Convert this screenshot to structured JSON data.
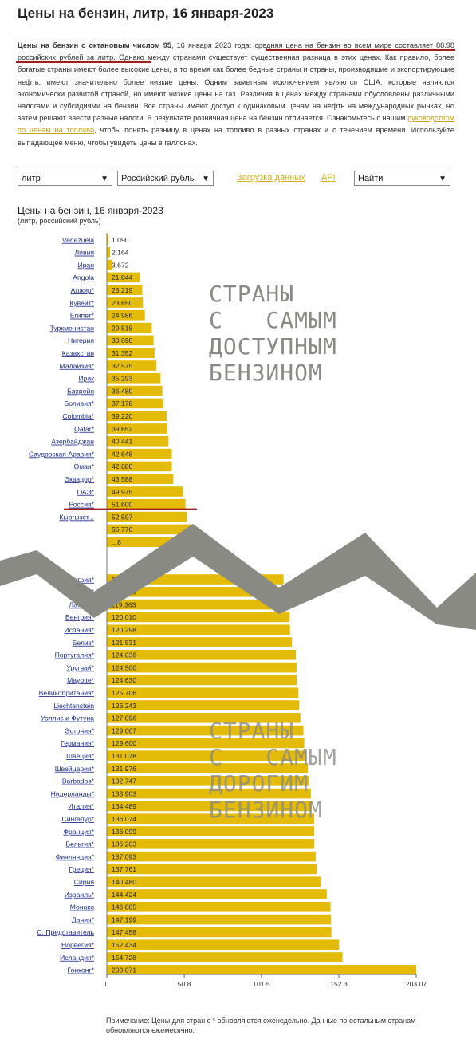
{
  "title": "Цены на бензин, литр, 16 января-2023",
  "intro": {
    "lead_bold": "Цены на бензин с октановым числом 95",
    "lead_rest": ", 16 января 2023 года: ",
    "avg_text": "средняя цена на бензин во всем мире составляет 88.98 российских рублей за литр",
    "body_1": ". Однако между странами существует существенная разница в этих ценах. Как правило, более богатые страны имеют более высокие цены, в то время как более бедные страны и страны, производящие и экспортирующие нефть, имеют значительно более низкие цены. Одним заметным исключением являются США, которые являются экономически развитой страной, но имеют низкие цены на газ. Различия в ценах между странами обусловлены различными налогами и субсидиями на бензин. Все страны имеют доступ к одинаковым ценам на нефть на международных рынках, но затем решают ввести разные налоги. В результате розничная цена на бензин отличается. Ознакомьтесь с нашим ",
    "guide_link": "руководством по ценам на топливо",
    "body_2": ", чтобы понять разницу в ценах на топливо в разных странах и с течением времени. Используйте выпадающее меню, чтобы увидеть цены в галлонах."
  },
  "controls": {
    "unit_select": "литр",
    "currency_select": "Российский рубль",
    "download_link": "Загрузка данных",
    "api_link": "API",
    "find_select": "Найти"
  },
  "chart_header": {
    "title": "Цены на бензин, 16 января-2023",
    "subtitle": "(литр, российский рубль)"
  },
  "overlays": {
    "top": "СТРАНЫ\nС   САМЫМ\nДОСТУПНЫМ\nБЕНЗИНОМ",
    "bottom": "СТРАНЫ\nС   САМЫМ\nДОРОГИМ\nБЕНЗИНОМ"
  },
  "note": "Примечание: Цены для стран с * обновляются еженедельно. Данные по остальным странам обновляются ежемесячно.",
  "colors": {
    "bar": "#e3bb08",
    "accent_line": "#a01e1e",
    "link": "#d8b020",
    "overlay": "#8a8a85"
  },
  "chart_data": {
    "type": "bar",
    "orientation": "horizontal",
    "title": "Цены на бензин, 16 января-2023",
    "subtitle": "(литр, российский рубль)",
    "xlim": [
      0,
      203.07
    ],
    "x_ticks": [
      "0",
      "50.8",
      "101.5",
      "152.3",
      "203.07"
    ],
    "x_tick_values": [
      0,
      50.8,
      101.5,
      152.3,
      203.07
    ],
    "top_group": [
      {
        "country": "Venezuela",
        "value": 1.09,
        "label": "1.090"
      },
      {
        "country": "Ливия",
        "value": 2.164,
        "label": "2.164"
      },
      {
        "country": "Иран",
        "value": 3.672,
        "label": "3.672"
      },
      {
        "country": "Angola",
        "value": 21.844,
        "label": "21.844"
      },
      {
        "country": "Алжир*",
        "value": 23.219,
        "label": "23.219"
      },
      {
        "country": "Кувейт*",
        "value": 23.65,
        "label": "23.650"
      },
      {
        "country": "Египет*",
        "value": 24.986,
        "label": "24.986"
      },
      {
        "country": "Туркменистан",
        "value": 29.518,
        "label": "29.518"
      },
      {
        "country": "Нигерия",
        "value": 30.69,
        "label": "30.690"
      },
      {
        "country": "Казахстан",
        "value": 31.352,
        "label": "31.352"
      },
      {
        "country": "Малайзия*",
        "value": 32.575,
        "label": "32.575"
      },
      {
        "country": "Ирак",
        "value": 35.293,
        "label": "35.293"
      },
      {
        "country": "Бахрейн",
        "value": 36.48,
        "label": "36.480"
      },
      {
        "country": "Боливия*",
        "value": 37.178,
        "label": "37.178"
      },
      {
        "country": "Colombia*",
        "value": 39.22,
        "label": "39.220"
      },
      {
        "country": "Qatar*",
        "value": 39.652,
        "label": "39.652"
      },
      {
        "country": "Азербайджан",
        "value": 40.441,
        "label": "40.441"
      },
      {
        "country": "Саудовская Аравия*",
        "value": 42.648,
        "label": "42.648"
      },
      {
        "country": "Оман*",
        "value": 42.68,
        "label": "42.680"
      },
      {
        "country": "Эквадор*",
        "value": 43.588,
        "label": "43.588"
      },
      {
        "country": "ОАЭ*",
        "value": 49.975,
        "label": "49.975"
      },
      {
        "country": "Россия*",
        "value": 51.6,
        "label": "51.600"
      },
      {
        "country": "Кыргызст...",
        "value": 52.597,
        "label": "52.597"
      },
      {
        "country": "",
        "value": 56.776,
        "label": "56.776"
      },
      {
        "country": "",
        "value": 58.5,
        "label": "...8"
      }
    ],
    "bottom_group": [
      {
        "country": "Австрия*",
        "value": 116.0,
        "label": "116..."
      },
      {
        "country": "Малави*",
        "value": 117.62,
        "label": "117.620"
      },
      {
        "country": "Латвия*",
        "value": 119.363,
        "label": "119.363"
      },
      {
        "country": "Венгрия*",
        "value": 120.01,
        "label": "120.010"
      },
      {
        "country": "Испания*",
        "value": 120.298,
        "label": "120.298"
      },
      {
        "country": "Белиз*",
        "value": 121.531,
        "label": "121.531"
      },
      {
        "country": "Португалия*",
        "value": 124.036,
        "label": "124.036"
      },
      {
        "country": "Уругвай*",
        "value": 124.5,
        "label": "124.500"
      },
      {
        "country": "Mayotte*",
        "value": 124.63,
        "label": "124.630"
      },
      {
        "country": "Великобритания*",
        "value": 125.706,
        "label": "125.706"
      },
      {
        "country": "Liechtenstein",
        "value": 126.243,
        "label": "126.243"
      },
      {
        "country": "Уоллис и Футуна",
        "value": 127.096,
        "label": "127.096"
      },
      {
        "country": "Эстония*",
        "value": 129.007,
        "label": "129.007"
      },
      {
        "country": "Германия*",
        "value": 129.6,
        "label": "129.600"
      },
      {
        "country": "Швеция*",
        "value": 131.078,
        "label": "131.078"
      },
      {
        "country": "Швейцария*",
        "value": 131.976,
        "label": "131.976"
      },
      {
        "country": "Barbados*",
        "value": 132.747,
        "label": "132.747"
      },
      {
        "country": "Нидерланды*",
        "value": 133.903,
        "label": "133.903"
      },
      {
        "country": "Италия*",
        "value": 134.489,
        "label": "134.489"
      },
      {
        "country": "Сингапур*",
        "value": 136.074,
        "label": "136.074"
      },
      {
        "country": "Франция*",
        "value": 136.099,
        "label": "136.099"
      },
      {
        "country": "Бельгия*",
        "value": 136.203,
        "label": "136.203"
      },
      {
        "country": "Финляндия*",
        "value": 137.093,
        "label": "137.093"
      },
      {
        "country": "Греция*",
        "value": 137.761,
        "label": "137.761"
      },
      {
        "country": "Сирия",
        "value": 140.48,
        "label": "140.480"
      },
      {
        "country": "Израиль*",
        "value": 144.424,
        "label": "144.424"
      },
      {
        "country": "Монако",
        "value": 146.885,
        "label": "146.885"
      },
      {
        "country": "Дания*",
        "value": 147.199,
        "label": "147.199"
      },
      {
        "country": "С. Представитель",
        "value": 147.458,
        "label": "147.458"
      },
      {
        "country": "Норвегия*",
        "value": 152.434,
        "label": "152.434"
      },
      {
        "country": "Исландия*",
        "value": 154.728,
        "label": "154.728"
      },
      {
        "country": "Гонконг*",
        "value": 203.071,
        "label": "203.071"
      }
    ],
    "highlight_country": "Россия*"
  }
}
